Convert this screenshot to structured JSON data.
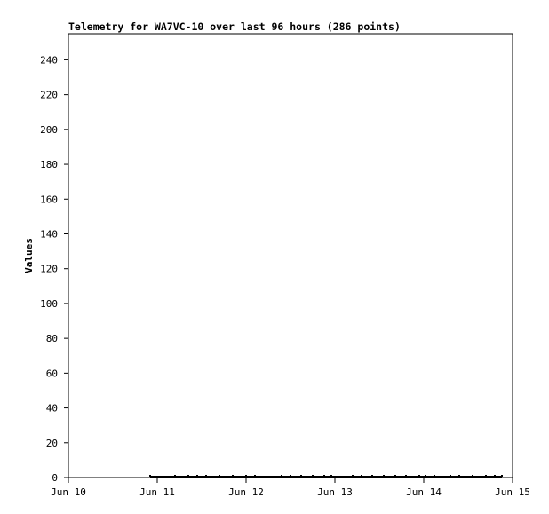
{
  "chart_data": {
    "type": "line",
    "title": "Telemetry for WA7VC-10 over last 96 hours (286 points)",
    "xlabel": "",
    "ylabel": "Values",
    "x_tick_labels": [
      "Jun 10",
      "Jun 11",
      "Jun 12",
      "Jun 13",
      "Jun 14",
      "Jun 15"
    ],
    "y_tick_labels": [
      "0",
      "20",
      "40",
      "60",
      "80",
      "100",
      "120",
      "140",
      "160",
      "180",
      "200",
      "220",
      "240"
    ],
    "xlim_days": [
      10,
      15
    ],
    "ylim": [
      0,
      255
    ],
    "grid": false,
    "series": [
      {
        "color": "#000000",
        "x_days": [
          10.92,
          11.2,
          11.35,
          11.45,
          11.55,
          11.7,
          11.85,
          12.0,
          12.1,
          12.4,
          12.5,
          12.62,
          12.75,
          12.88,
          12.96,
          13.2,
          13.3,
          13.42,
          13.55,
          13.68,
          13.8,
          13.95,
          14.02,
          14.12,
          14.3,
          14.4,
          14.55,
          14.7,
          14.8,
          14.88
        ],
        "values": [
          0,
          0,
          0,
          0,
          0,
          0,
          0,
          0,
          0,
          0,
          0,
          0,
          0,
          0,
          0,
          0,
          0,
          0,
          0,
          0,
          0,
          0,
          0,
          0,
          0,
          0,
          0,
          0,
          0,
          0
        ]
      }
    ]
  }
}
